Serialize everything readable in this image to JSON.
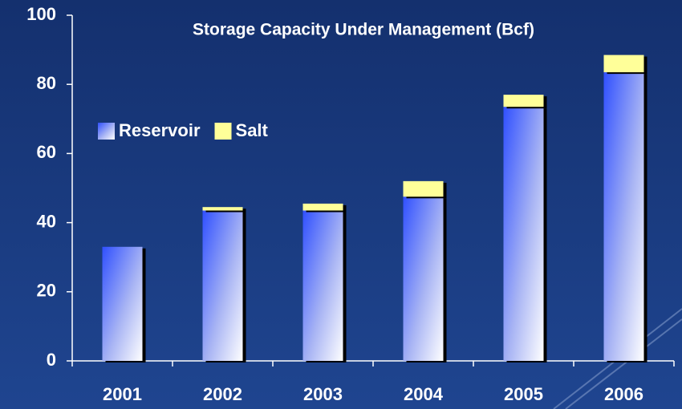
{
  "chart_data": {
    "type": "stacked_bar",
    "title": "Storage Capacity Under Management (Bcf)",
    "categories": [
      "2001",
      "2002",
      "2003",
      "2004",
      "2005",
      "2006"
    ],
    "series": [
      {
        "name": "Reservoir",
        "color": "#3f5fff",
        "values": [
          33,
          43.5,
          43.5,
          47.5,
          73.5,
          83.5
        ]
      },
      {
        "name": "Salt",
        "color": "#ffff99",
        "values": [
          0,
          1,
          2,
          4.5,
          3.5,
          5
        ]
      }
    ],
    "ylim": [
      0,
      100
    ],
    "yticks": [
      0,
      20,
      40,
      60,
      80,
      100
    ],
    "grid": false
  }
}
